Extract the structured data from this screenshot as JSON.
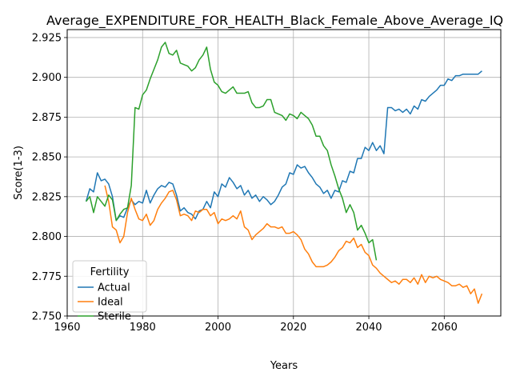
{
  "chart_data": {
    "type": "line",
    "title": "Average_EXPENDITURE_FOR_HEALTH_Black_Female_Above_Average_IQ",
    "xlabel": "Years",
    "ylabel": "Score(1-3)",
    "xlim": [
      1960,
      2075
    ],
    "ylim": [
      2.75,
      2.93
    ],
    "xticks": [
      1960,
      1980,
      2000,
      2020,
      2040,
      2060
    ],
    "xtick_labels": [
      "1960",
      "1980",
      "2000",
      "2020",
      "2040",
      "2060"
    ],
    "yticks": [
      2.75,
      2.775,
      2.8,
      2.825,
      2.85,
      2.875,
      2.9,
      2.925
    ],
    "ytick_labels": [
      "2.750",
      "2.775",
      "2.800",
      "2.825",
      "2.850",
      "2.875",
      "2.900",
      "2.925"
    ],
    "grid": true,
    "legend": {
      "title": "Fertility",
      "placement": "lower-left"
    },
    "series": [
      {
        "name": "Actual",
        "color": "#1f77b4",
        "x": [
          1965,
          1966,
          1967,
          1968,
          1969,
          1970,
          1971,
          1972,
          1973,
          1974,
          1975,
          1976,
          1977,
          1978,
          1979,
          1980,
          1981,
          1982,
          1983,
          1984,
          1985,
          1986,
          1987,
          1988,
          1989,
          1990,
          1991,
          1992,
          1993,
          1994,
          1995,
          1996,
          1997,
          1998,
          1999,
          2000,
          2001,
          2002,
          2003,
          2004,
          2005,
          2006,
          2007,
          2008,
          2009,
          2010,
          2011,
          2012,
          2013,
          2014,
          2015,
          2016,
          2017,
          2018,
          2019,
          2020,
          2021,
          2022,
          2023,
          2024,
          2025,
          2026,
          2027,
          2028,
          2029,
          2030,
          2031,
          2032,
          2033,
          2034,
          2035,
          2036,
          2037,
          2038,
          2039,
          2040,
          2041,
          2042,
          2043,
          2044,
          2045,
          2046,
          2047,
          2048,
          2049,
          2050,
          2051,
          2052,
          2053,
          2054,
          2055,
          2056,
          2057,
          2058,
          2059,
          2060,
          2061,
          2062,
          2063,
          2064,
          2065,
          2066,
          2067,
          2068,
          2069,
          2070
        ],
        "values": [
          2.822,
          2.83,
          2.828,
          2.84,
          2.835,
          2.836,
          2.833,
          2.825,
          2.81,
          2.813,
          2.812,
          2.818,
          2.823,
          2.82,
          2.822,
          2.821,
          2.829,
          2.821,
          2.826,
          2.83,
          2.832,
          2.831,
          2.834,
          2.833,
          2.826,
          2.816,
          2.818,
          2.815,
          2.814,
          2.811,
          2.816,
          2.817,
          2.822,
          2.818,
          2.828,
          2.825,
          2.833,
          2.831,
          2.837,
          2.834,
          2.83,
          2.832,
          2.826,
          2.829,
          2.824,
          2.826,
          2.822,
          2.825,
          2.823,
          2.82,
          2.822,
          2.826,
          2.831,
          2.833,
          2.84,
          2.839,
          2.845,
          2.843,
          2.844,
          2.84,
          2.837,
          2.833,
          2.831,
          2.827,
          2.829,
          2.824,
          2.829,
          2.828,
          2.835,
          2.834,
          2.841,
          2.84,
          2.849,
          2.849,
          2.856,
          2.854,
          2.859,
          2.854,
          2.857,
          2.852,
          2.881,
          2.881,
          2.879,
          2.88,
          2.878,
          2.88,
          2.877,
          2.882,
          2.88,
          2.886,
          2.885,
          2.888,
          2.89,
          2.892,
          2.895,
          2.895,
          2.899,
          2.898,
          2.901,
          2.901,
          2.902,
          2.902,
          2.902,
          2.902,
          2.902,
          2.904
        ]
      },
      {
        "name": "Ideal",
        "color": "#ff7f0e",
        "x": [
          1970,
          1971,
          1972,
          1973,
          1974,
          1975,
          1976,
          1977,
          1978,
          1979,
          1980,
          1981,
          1982,
          1983,
          1984,
          1985,
          1986,
          1987,
          1988,
          1989,
          1990,
          1991,
          1992,
          1993,
          1994,
          1995,
          1996,
          1997,
          1998,
          1999,
          2000,
          2001,
          2002,
          2003,
          2004,
          2005,
          2006,
          2007,
          2008,
          2009,
          2010,
          2011,
          2012,
          2013,
          2014,
          2015,
          2016,
          2017,
          2018,
          2019,
          2020,
          2021,
          2022,
          2023,
          2024,
          2025,
          2026,
          2027,
          2028,
          2029,
          2030,
          2031,
          2032,
          2033,
          2034,
          2035,
          2036,
          2037,
          2038,
          2039,
          2040,
          2041,
          2042,
          2043,
          2044,
          2045,
          2046,
          2047,
          2048,
          2049,
          2050,
          2051,
          2052,
          2053,
          2054,
          2055,
          2056,
          2057,
          2058,
          2059,
          2060,
          2061,
          2062,
          2063,
          2064,
          2065,
          2066,
          2067,
          2068,
          2069,
          2070
        ],
        "values": [
          2.832,
          2.822,
          2.806,
          2.804,
          2.796,
          2.8,
          2.815,
          2.824,
          2.817,
          2.811,
          2.81,
          2.814,
          2.807,
          2.81,
          2.817,
          2.821,
          2.824,
          2.828,
          2.829,
          2.823,
          2.813,
          2.814,
          2.813,
          2.81,
          2.816,
          2.815,
          2.817,
          2.817,
          2.813,
          2.815,
          2.808,
          2.811,
          2.81,
          2.811,
          2.813,
          2.811,
          2.816,
          2.806,
          2.804,
          2.798,
          2.801,
          2.803,
          2.805,
          2.808,
          2.806,
          2.806,
          2.805,
          2.806,
          2.802,
          2.802,
          2.803,
          2.801,
          2.798,
          2.792,
          2.789,
          2.784,
          2.781,
          2.781,
          2.781,
          2.782,
          2.784,
          2.787,
          2.791,
          2.793,
          2.797,
          2.796,
          2.799,
          2.793,
          2.795,
          2.79,
          2.788,
          2.782,
          2.78,
          2.777,
          2.775,
          2.773,
          2.771,
          2.772,
          2.77,
          2.773,
          2.773,
          2.771,
          2.774,
          2.77,
          2.776,
          2.771,
          2.775,
          2.774,
          2.775,
          2.773,
          2.772,
          2.771,
          2.769,
          2.769,
          2.77,
          2.768,
          2.769,
          2.764,
          2.767,
          2.758,
          2.764
        ]
      },
      {
        "name": "Sterile",
        "color": "#2ca02c",
        "x": [
          1965,
          1966,
          1967,
          1968,
          1969,
          1970,
          1971,
          1972,
          1973,
          1974,
          1975,
          1976,
          1977,
          1978,
          1979,
          1980,
          1981,
          1982,
          1983,
          1984,
          1985,
          1986,
          1987,
          1988,
          1989,
          1990,
          1991,
          1992,
          1993,
          1994,
          1995,
          1996,
          1997,
          1998,
          1999,
          2000,
          2001,
          2002,
          2003,
          2004,
          2005,
          2006,
          2007,
          2008,
          2009,
          2010,
          2011,
          2012,
          2013,
          2014,
          2015,
          2016,
          2017,
          2018,
          2019,
          2020,
          2021,
          2022,
          2023,
          2024,
          2025,
          2026,
          2027,
          2028,
          2029,
          2030,
          2031,
          2032,
          2033,
          2034,
          2035,
          2036,
          2037,
          2038,
          2039,
          2040,
          2041,
          2042
        ],
        "values": [
          2.822,
          2.825,
          2.815,
          2.825,
          2.822,
          2.819,
          2.826,
          2.823,
          2.81,
          2.814,
          2.817,
          2.818,
          2.832,
          2.881,
          2.88,
          2.889,
          2.892,
          2.899,
          2.905,
          2.911,
          2.919,
          2.922,
          2.915,
          2.914,
          2.917,
          2.909,
          2.908,
          2.907,
          2.904,
          2.906,
          2.911,
          2.914,
          2.919,
          2.905,
          2.897,
          2.895,
          2.891,
          2.89,
          2.892,
          2.894,
          2.89,
          2.89,
          2.89,
          2.891,
          2.884,
          2.881,
          2.881,
          2.882,
          2.886,
          2.886,
          2.878,
          2.877,
          2.876,
          2.873,
          2.877,
          2.876,
          2.874,
          2.878,
          2.876,
          2.874,
          2.87,
          2.863,
          2.863,
          2.857,
          2.854,
          2.845,
          2.838,
          2.83,
          2.824,
          2.815,
          2.82,
          2.815,
          2.804,
          2.807,
          2.802,
          2.796,
          2.798,
          2.785
        ]
      }
    ]
  }
}
